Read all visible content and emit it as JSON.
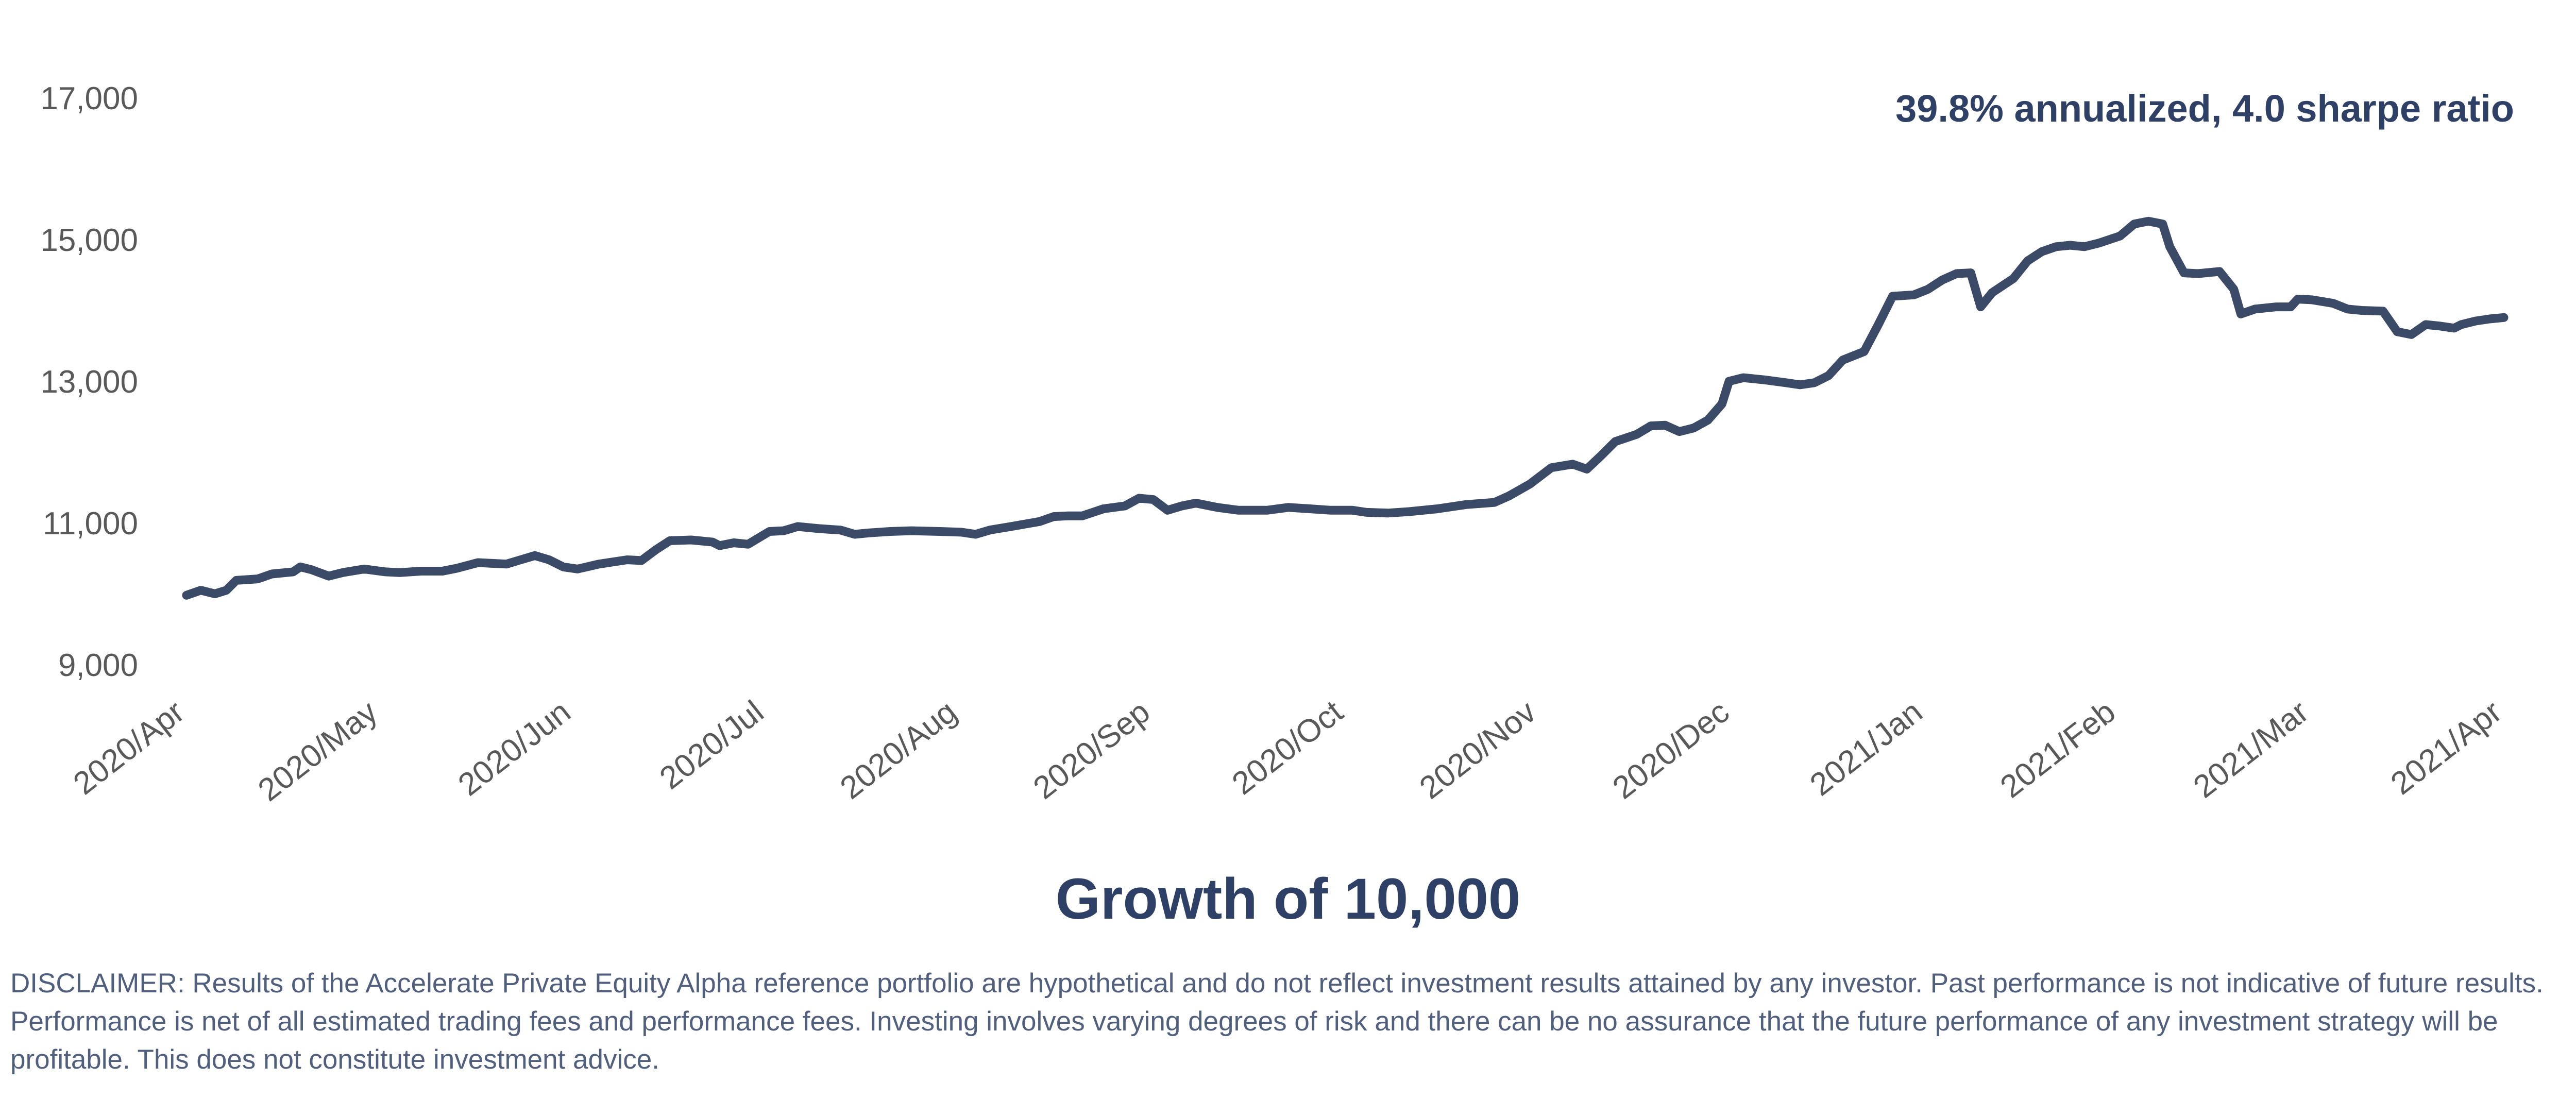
{
  "chart_data": {
    "type": "line",
    "title": "Growth of 10,000",
    "annotation": "39.8% annualized, 4.0 sharpe ratio",
    "xlabel": "",
    "ylabel": "",
    "ylim": [
      9000,
      17000
    ],
    "yticks": [
      9000,
      11000,
      13000,
      15000,
      17000
    ],
    "ytick_labels": [
      "9,000",
      "11,000",
      "13,000",
      "15,000",
      "17,000"
    ],
    "xticks": [
      "2020/Apr",
      "2020/May",
      "2020/Jun",
      "2020/Jul",
      "2020/Aug",
      "2020/Sep",
      "2020/Oct",
      "2020/Nov",
      "2020/Dec",
      "2021/Jan",
      "2021/Feb",
      "2021/Mar",
      "2021/Apr"
    ],
    "grid": false,
    "line_color": "#3b4a66",
    "series": [
      {
        "values": [
          [
            0,
            9980
          ],
          [
            0.1,
            10050
          ],
          [
            0.2,
            10000
          ],
          [
            0.28,
            10050
          ],
          [
            0.35,
            10190
          ],
          [
            0.5,
            10210
          ],
          [
            0.6,
            10280
          ],
          [
            0.75,
            10310
          ],
          [
            0.8,
            10380
          ],
          [
            0.88,
            10340
          ],
          [
            1.0,
            10250
          ],
          [
            1.1,
            10300
          ],
          [
            1.25,
            10350
          ],
          [
            1.4,
            10310
          ],
          [
            1.5,
            10300
          ],
          [
            1.65,
            10320
          ],
          [
            1.8,
            10320
          ],
          [
            1.9,
            10360
          ],
          [
            2.05,
            10440
          ],
          [
            2.25,
            10420
          ],
          [
            2.35,
            10480
          ],
          [
            2.45,
            10540
          ],
          [
            2.55,
            10480
          ],
          [
            2.65,
            10380
          ],
          [
            2.75,
            10350
          ],
          [
            2.9,
            10420
          ],
          [
            3.1,
            10480
          ],
          [
            3.2,
            10470
          ],
          [
            3.3,
            10620
          ],
          [
            3.4,
            10750
          ],
          [
            3.55,
            10760
          ],
          [
            3.7,
            10730
          ],
          [
            3.75,
            10680
          ],
          [
            3.85,
            10720
          ],
          [
            3.95,
            10700
          ],
          [
            4.1,
            10880
          ],
          [
            4.2,
            10890
          ],
          [
            4.3,
            10950
          ],
          [
            4.45,
            10920
          ],
          [
            4.6,
            10900
          ],
          [
            4.7,
            10840
          ],
          [
            4.8,
            10860
          ],
          [
            4.95,
            10880
          ],
          [
            5.1,
            10890
          ],
          [
            5.3,
            10880
          ],
          [
            5.45,
            10870
          ],
          [
            5.55,
            10840
          ],
          [
            5.65,
            10900
          ],
          [
            5.8,
            10950
          ],
          [
            6.0,
            11020
          ],
          [
            6.1,
            11090
          ],
          [
            6.2,
            11100
          ],
          [
            6.3,
            11100
          ],
          [
            6.45,
            11200
          ],
          [
            6.6,
            11240
          ],
          [
            6.7,
            11350
          ],
          [
            6.8,
            11330
          ],
          [
            6.9,
            11180
          ],
          [
            7.0,
            11240
          ],
          [
            7.1,
            11280
          ],
          [
            7.25,
            11220
          ],
          [
            7.4,
            11180
          ],
          [
            7.6,
            11180
          ],
          [
            7.75,
            11220
          ],
          [
            7.9,
            11200
          ],
          [
            8.05,
            11180
          ],
          [
            8.2,
            11180
          ],
          [
            8.3,
            11150
          ],
          [
            8.45,
            11140
          ],
          [
            8.6,
            11160
          ],
          [
            8.8,
            11200
          ],
          [
            9.0,
            11260
          ],
          [
            9.2,
            11290
          ],
          [
            9.3,
            11380
          ],
          [
            9.45,
            11550
          ],
          [
            9.6,
            11780
          ],
          [
            9.75,
            11830
          ],
          [
            9.85,
            11760
          ],
          [
            9.95,
            11950
          ],
          [
            10.05,
            12150
          ],
          [
            10.2,
            12250
          ],
          [
            10.3,
            12370
          ],
          [
            10.4,
            12380
          ],
          [
            10.5,
            12290
          ],
          [
            10.6,
            12340
          ],
          [
            10.7,
            12450
          ],
          [
            10.8,
            12680
          ],
          [
            10.85,
            13000
          ],
          [
            10.95,
            13050
          ],
          [
            11.1,
            13020
          ],
          [
            11.25,
            12980
          ],
          [
            11.35,
            12950
          ],
          [
            11.45,
            12980
          ],
          [
            11.55,
            13080
          ],
          [
            11.65,
            13300
          ],
          [
            11.8,
            13420
          ],
          [
            11.9,
            13800
          ],
          [
            12.0,
            14200
          ],
          [
            12.15,
            14220
          ],
          [
            12.25,
            14300
          ],
          [
            12.35,
            14430
          ],
          [
            12.45,
            14520
          ],
          [
            12.55,
            14530
          ],
          [
            12.62,
            14050
          ],
          [
            12.7,
            14250
          ],
          [
            12.85,
            14450
          ],
          [
            12.95,
            14700
          ],
          [
            13.05,
            14830
          ],
          [
            13.15,
            14900
          ],
          [
            13.25,
            14920
          ],
          [
            13.35,
            14900
          ],
          [
            13.45,
            14950
          ],
          [
            13.6,
            15050
          ],
          [
            13.7,
            15220
          ],
          [
            13.8,
            15260
          ],
          [
            13.9,
            15220
          ],
          [
            13.95,
            14900
          ],
          [
            14.05,
            14530
          ],
          [
            14.15,
            14520
          ],
          [
            14.3,
            14550
          ],
          [
            14.4,
            14300
          ],
          [
            14.45,
            13950
          ],
          [
            14.55,
            14020
          ],
          [
            14.7,
            14050
          ],
          [
            14.8,
            14050
          ],
          [
            14.85,
            14160
          ],
          [
            14.95,
            14150
          ],
          [
            15.1,
            14100
          ],
          [
            15.2,
            14020
          ],
          [
            15.3,
            14000
          ],
          [
            15.45,
            13990
          ],
          [
            15.55,
            13700
          ],
          [
            15.65,
            13660
          ],
          [
            15.75,
            13800
          ],
          [
            15.85,
            13780
          ],
          [
            15.95,
            13750
          ],
          [
            16.0,
            13800
          ],
          [
            16.1,
            13850
          ],
          [
            16.2,
            13880
          ],
          [
            16.3,
            13900
          ]
        ]
      }
    ]
  },
  "disclaimer": "DISCLAIMER: Results of the Accelerate Private Equity Alpha reference portfolio are hypothetical and do not reflect investment results attained by any investor. Past performance is not indicative of future results. Performance is net of all estimated trading fees and performance fees. Investing involves varying degrees of risk and there can be no assurance that the future performance of any investment strategy will be profitable. This does not constitute investment advice."
}
